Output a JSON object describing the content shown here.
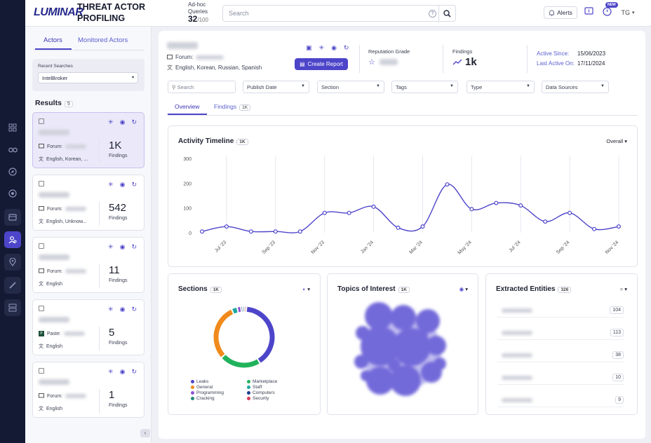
{
  "header": {
    "logo": "LUMINAR",
    "title_line1": "THREAT ACTOR",
    "title_line2": "PROFILING",
    "adhoc_label_1": "Ad-hoc",
    "adhoc_label_2": "Queries",
    "adhoc_used": "32",
    "adhoc_total": "/100",
    "search_placeholder": "Search",
    "alerts_label": "Alerts",
    "new_badge": "NEW",
    "user_initials": "TG"
  },
  "sidebar": {
    "tabs": [
      "Actors",
      "Monitored Actors"
    ],
    "recent_searches_label": "Recent Searches",
    "recent_search_value": "IntelBroker",
    "results_label": "Results",
    "results_count": "5",
    "cards": [
      {
        "source_label": "Forum:",
        "languages": "English, Korean, ...",
        "count": "1K",
        "count_label": "Findings"
      },
      {
        "source_label": "Forum:",
        "languages": "English, Unknow...",
        "count": "542",
        "count_label": "Findings"
      },
      {
        "source_label": "Forum:",
        "languages": "English",
        "count": "11",
        "count_label": "Findings"
      },
      {
        "source_label": "Paste:",
        "languages": "English",
        "count": "5",
        "count_label": "Findings"
      },
      {
        "source_label": "Forum:",
        "languages": "English",
        "count": "1",
        "count_label": "Findings"
      }
    ]
  },
  "actor": {
    "forum_label": "Forum:",
    "languages": "English, Korean, Russian, Spanish",
    "create_report": "Create Report",
    "reputation_label": "Reputation Grade",
    "findings_label": "Findings",
    "findings_value": "1k",
    "active_since_label": "Active Since:",
    "active_since": "15/06/2023",
    "last_active_label": "Last Active On:",
    "last_active": "17/11/2024"
  },
  "filters": {
    "search_placeholder": "Search",
    "publish_date": "Publish Date",
    "section": "Section",
    "tags": "Tags",
    "type": "Type",
    "data_sources": "Data Sources"
  },
  "main_tabs": {
    "overview": "Overview",
    "findings": "Findings",
    "findings_count": "1K"
  },
  "activity": {
    "title": "Activity Timeline",
    "count": "1K",
    "scope": "Overall"
  },
  "sections_panel": {
    "title": "Sections",
    "count": "1K",
    "legend": [
      "Leaks",
      "Marketplace",
      "General",
      "Staff",
      "Programming",
      "Computers",
      "Cracking",
      "Security"
    ],
    "legend_colors": [
      "#4d45c9",
      "#21b35c",
      "#f08a1c",
      "#1ea7a0",
      "#8e55d6",
      "#1c3f8f",
      "#24887a",
      "#d73a5c"
    ]
  },
  "topics_panel": {
    "title": "Topics of Interest",
    "count": "1K"
  },
  "entities_panel": {
    "title": "Extracted Entities",
    "count": "326",
    "counts": [
      "104",
      "113",
      "38",
      "10",
      "9"
    ]
  },
  "chart_data": {
    "type": "line",
    "title": "Activity Timeline",
    "x": [
      "Jun '23",
      "Jul '23",
      "Aug '23",
      "Sep '23",
      "Oct '23",
      "Nov '23",
      "Dec '23",
      "Jan '24",
      "Feb '24",
      "Mar '24",
      "Apr '24",
      "May '24",
      "Jun '24",
      "Jul '24",
      "Aug '24",
      "Sep '24",
      "Oct '24",
      "Nov '24"
    ],
    "x_tick_labels": [
      "Jul '23",
      "Sep '23",
      "Nov '23",
      "Jan '24",
      "Mar '24",
      "May '24",
      "Jul '24",
      "Sep '24",
      "Nov '24"
    ],
    "series": [
      {
        "values": [
          5,
          25,
          5,
          5,
          5,
          80,
          80,
          105,
          20,
          25,
          195,
          95,
          120,
          110,
          45,
          80,
          15,
          25
        ]
      }
    ],
    "ylim": [
      0,
      300
    ],
    "y_ticks": [
      0,
      100,
      200,
      300
    ],
    "color": "#4d45c9",
    "grid": "vertical"
  },
  "donut_data": {
    "type": "pie",
    "values": [
      40,
      22,
      30,
      3,
      2,
      1,
      1,
      1
    ],
    "colors": [
      "#4d45c9",
      "#21b35c",
      "#f08a1c",
      "#1ea7a0",
      "#8e55d6",
      "#1c3f8f",
      "#24887a",
      "#d73a5c"
    ]
  }
}
